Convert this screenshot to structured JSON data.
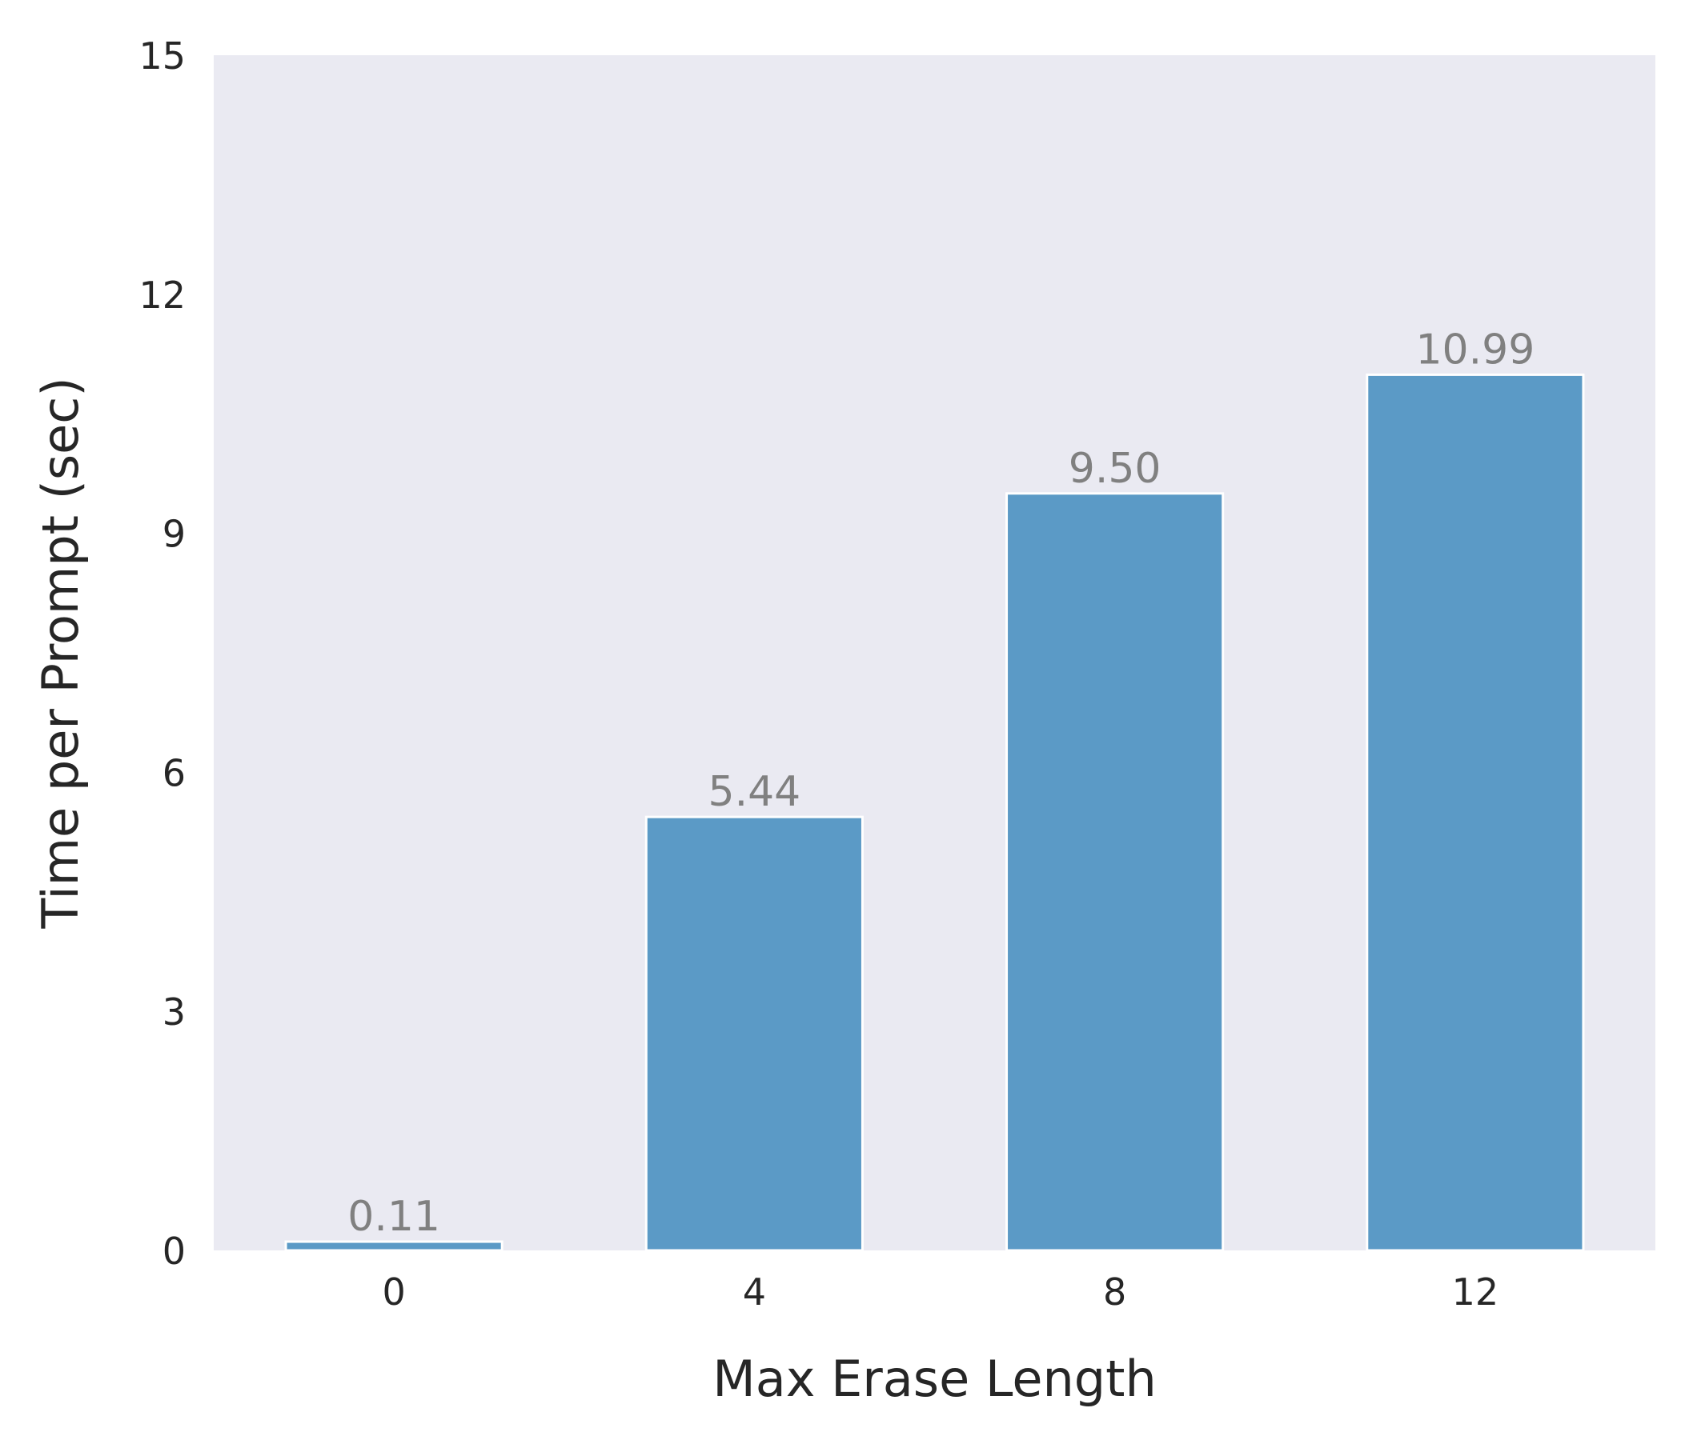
{
  "chart_data": {
    "type": "bar",
    "categories": [
      "0",
      "4",
      "8",
      "12"
    ],
    "values": [
      0.11,
      5.44,
      9.5,
      10.99
    ],
    "value_labels": [
      "0.11",
      "5.44",
      "9.50",
      "10.99"
    ],
    "title": "",
    "xlabel": "Max Erase Length",
    "ylabel": "Time per Prompt (sec)",
    "ylim": [
      0,
      15
    ],
    "yticks": [
      0,
      3,
      6,
      9,
      12,
      15
    ],
    "ytick_labels": [
      "0",
      "3",
      "6",
      "9",
      "12",
      "15"
    ],
    "grid": false,
    "legend": "none"
  },
  "colors": {
    "bar": "#5b9ac6",
    "bar_edge": "#ffffff",
    "plot_background": "#eaeaf2",
    "value_label": "#808080",
    "text": "#262626"
  }
}
